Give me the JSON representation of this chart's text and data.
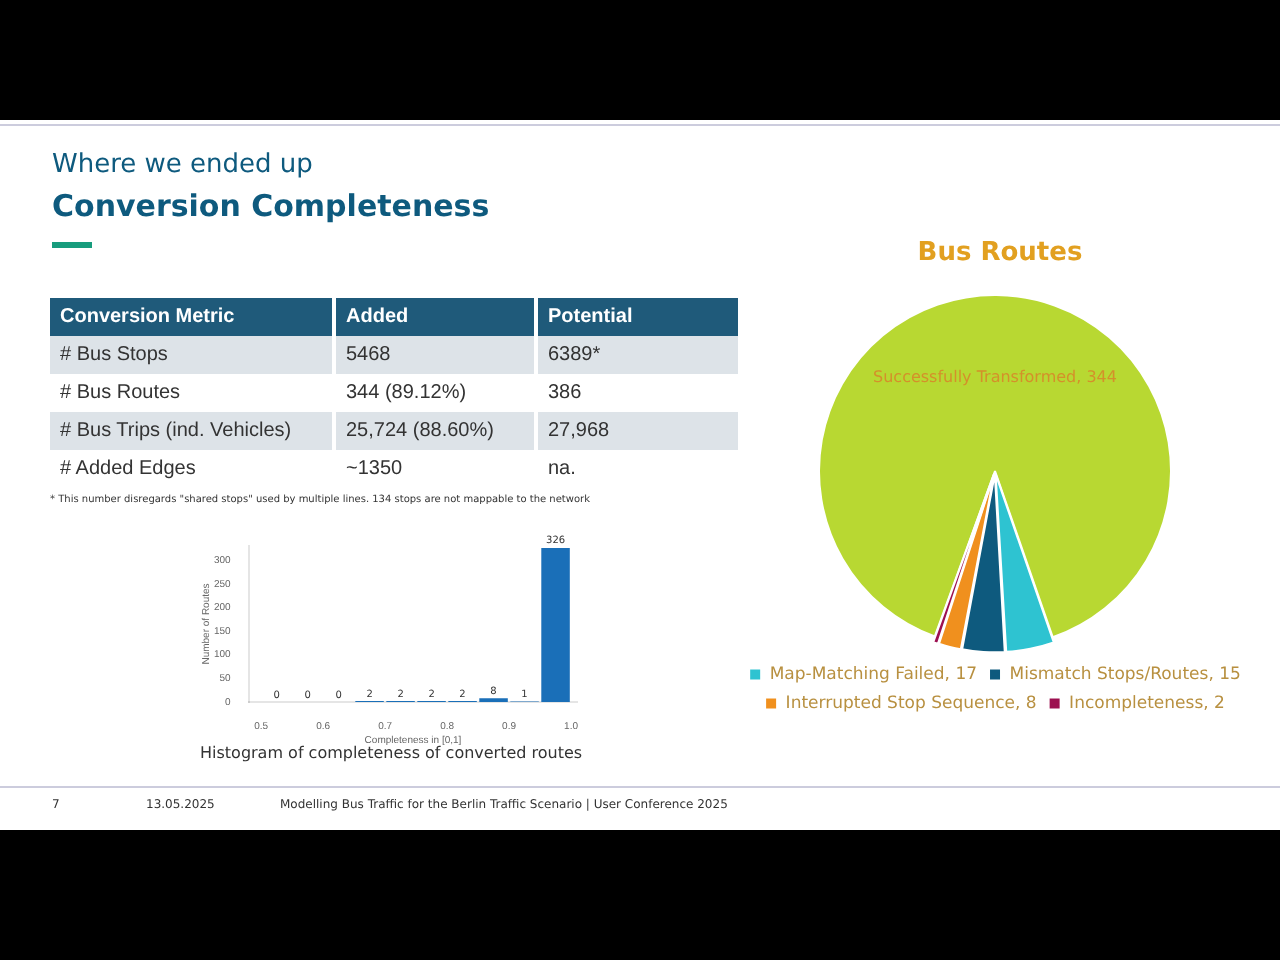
{
  "chart_data": [
    {
      "type": "other",
      "title": "Conversion Completeness",
      "subtitle": "Where we ended up",
      "annotations": [
        "Conversion Metric",
        "Added",
        "Potential",
        "# Bus Stops",
        "5468",
        "6389*",
        "# Bus Routes",
        "344 (89.12%)",
        "386",
        "# Bus Trips (ind. Vehicles)",
        "25,724 (88.60%)",
        "27,968",
        "# Added Edges",
        "~1350",
        "na.",
        "* This number disregards \"shared stops\" used by multiple lines. 134 stops are not mappable to the network",
        "7",
        "13.05.2025",
        "Modelling Bus Traffic for the Berlin Traffic Scenario | User Conference 2025"
      ]
    },
    {
      "type": "histogram",
      "bins": [
        0.5,
        0.55,
        0.6,
        0.65,
        0.7,
        0.75,
        0.8,
        0.85,
        0.9,
        0.95,
        1.0
      ],
      "values": [
        0,
        0,
        0,
        2,
        2,
        2,
        2,
        8,
        1,
        326
      ],
      "color": "#1a6fb8",
      "xlim": [
        0.48,
        1.01
      ],
      "xticks": [
        0.5,
        0.6,
        0.7,
        0.8,
        0.9,
        {
          "value": 1.0,
          "label": "1.0"
        }
      ],
      "ylim": [
        0,
        330
      ],
      "yticks": [
        0,
        50,
        100,
        150,
        200,
        250,
        300
      ],
      "xlabel": "Completeness in [0,1]",
      "ylabel": "Number of Routes",
      "data_labels": true,
      "grid": false,
      "annotations": [
        "Histogram of completeness of converted routes"
      ]
    },
    {
      "type": "pie",
      "title": "Bus Routes",
      "categories": [
        "Successfully Transformed, 344",
        "Map-Matching Failed, 17",
        "Mismatch Stops/Routes, 15",
        "Interrupted Stop Sequence, 8",
        "Incompleteness, 2"
      ],
      "values": [
        344,
        17,
        15,
        8,
        2
      ],
      "colors": [
        "#b8d832",
        "#2ec3d1",
        "#0e5a7e",
        "#f0901e",
        "#9c1050"
      ],
      "legend": "bottom"
    }
  ]
}
